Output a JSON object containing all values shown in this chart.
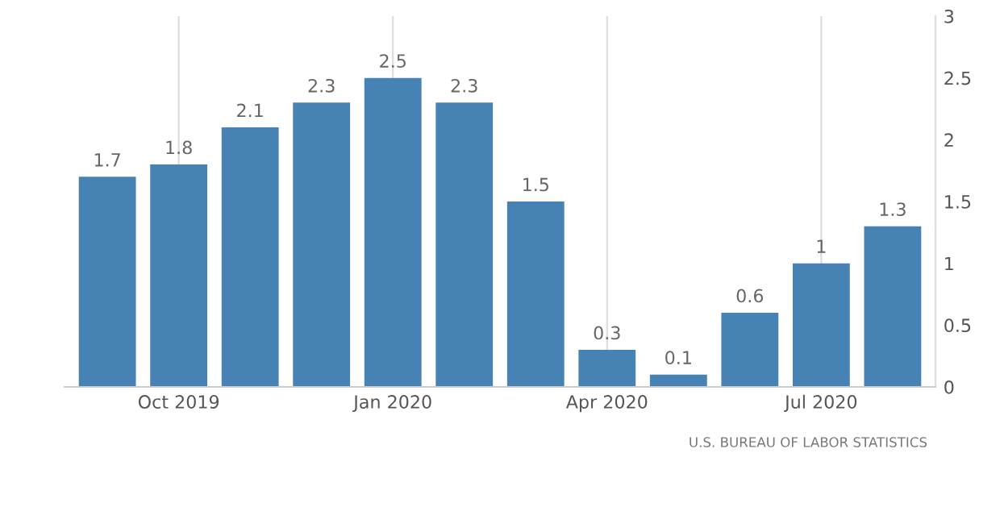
{
  "chart_data": {
    "type": "bar",
    "categories": [
      null,
      "Oct 2019",
      null,
      null,
      "Jan 2020",
      null,
      null,
      "Apr 2020",
      null,
      null,
      "Jul 2020",
      null
    ],
    "values": [
      1.7,
      1.8,
      2.1,
      2.3,
      2.5,
      2.3,
      1.5,
      0.3,
      0.1,
      0.6,
      1,
      1.3
    ],
    "color": "#4682b4",
    "data_labels": true,
    "ylim": [
      0,
      3
    ],
    "yticks": [
      0,
      0.5,
      1,
      1.5,
      2,
      2.5,
      3
    ],
    "grid": "x",
    "annotations": [
      "U.S. BUREAU OF LABOR STATISTICS"
    ]
  }
}
